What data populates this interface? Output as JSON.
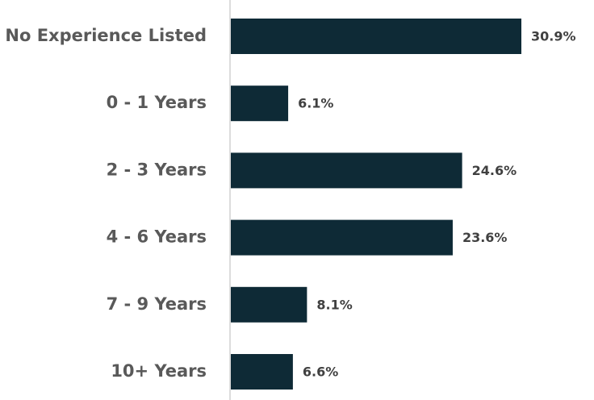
{
  "chart_data": {
    "type": "bar",
    "orientation": "horizontal",
    "categories": [
      "No Experience Listed",
      "0 - 1 Years",
      "2 - 3 Years",
      "4 - 6 Years",
      "7 - 9 Years",
      "10+ Years"
    ],
    "values": [
      30.9,
      6.1,
      24.6,
      23.6,
      8.1,
      6.6
    ],
    "value_labels": [
      "30.9%",
      "6.1%",
      "24.6%",
      "23.6%",
      "8.1%",
      "6.6%"
    ],
    "color": "#0e2a36"
  }
}
